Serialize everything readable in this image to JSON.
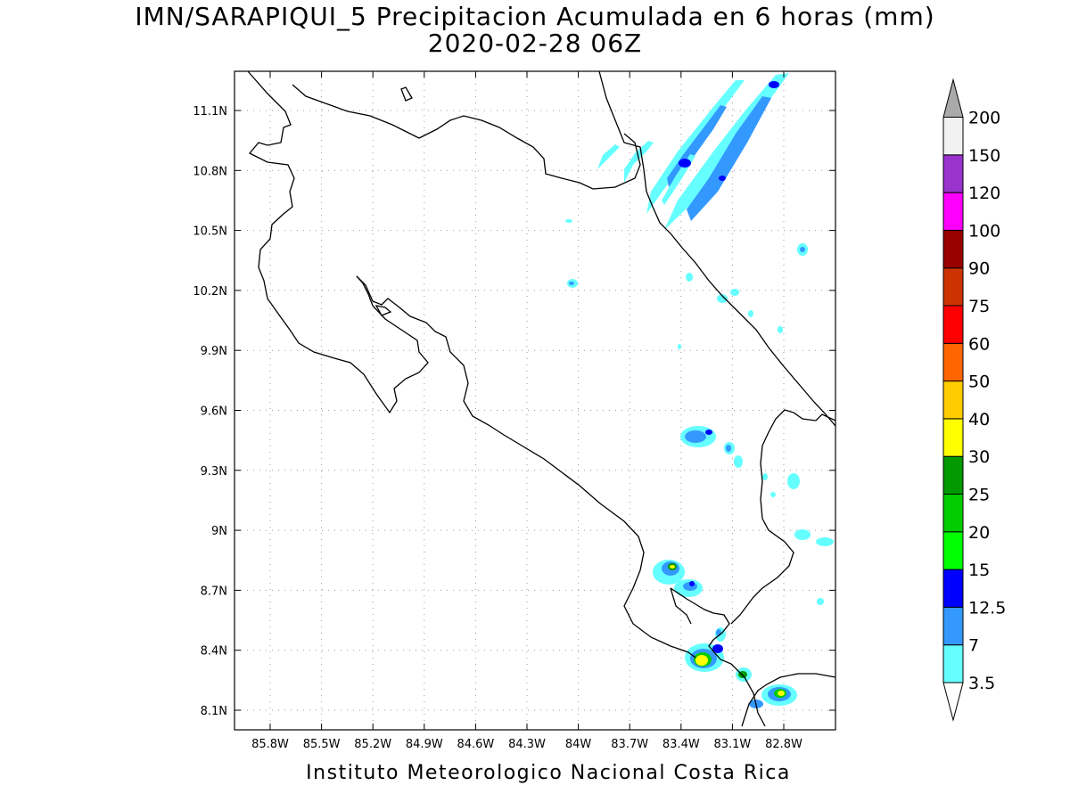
{
  "title_line1": "IMN/SARAPIQUI_5 Precipitacion Acumulada en 6 horas (mm)",
  "title_line2": "2020-02-28 06Z",
  "footer": "Instituto Meteorologico Nacional Costa Rica",
  "lat_labels": [
    "11.1N",
    "10.8N",
    "10.5N",
    "10.2N",
    "9.9N",
    "9.6N",
    "9.3N",
    "9N",
    "8.7N",
    "8.4N",
    "8.1N"
  ],
  "lon_labels": [
    "85.8W",
    "85.5W",
    "85.2W",
    "84.9W",
    "84.6W",
    "84.3W",
    "84W",
    "83.7W",
    "83.4W",
    "83.1W",
    "82.8W"
  ],
  "colorbar": {
    "labels": [
      "3.5",
      "7",
      "12.5",
      "15",
      "20",
      "25",
      "30",
      "40",
      "50",
      "60",
      "75",
      "90",
      "100",
      "120",
      "150",
      "200"
    ],
    "colors": [
      "#66ffff",
      "#3399ff",
      "#0000ff",
      "#00ff00",
      "#00cc00",
      "#009900",
      "#ffff00",
      "#ffcc00",
      "#ff6600",
      "#ff0000",
      "#cc3300",
      "#990000",
      "#ff00ff",
      "#9933cc",
      "#f2f2f2",
      "#aaaaaa"
    ]
  }
}
